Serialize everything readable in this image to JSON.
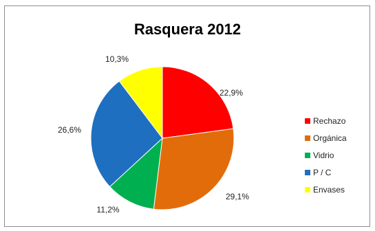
{
  "chart_data": {
    "type": "pie",
    "title": "Rasquera 2012",
    "categories": [
      "Rechazo",
      "Orgánica",
      "Vidrio",
      "P / C",
      "Envases"
    ],
    "values": [
      22.9,
      29.1,
      11.2,
      26.6,
      10.3
    ],
    "labels": [
      "22,9%",
      "29,1%",
      "11,2%",
      "26,6%",
      "10,3%"
    ],
    "colors": [
      "#ff0000",
      "#e36c0a",
      "#00b050",
      "#1f6fc0",
      "#ffff00"
    ],
    "legend_position": "right"
  }
}
